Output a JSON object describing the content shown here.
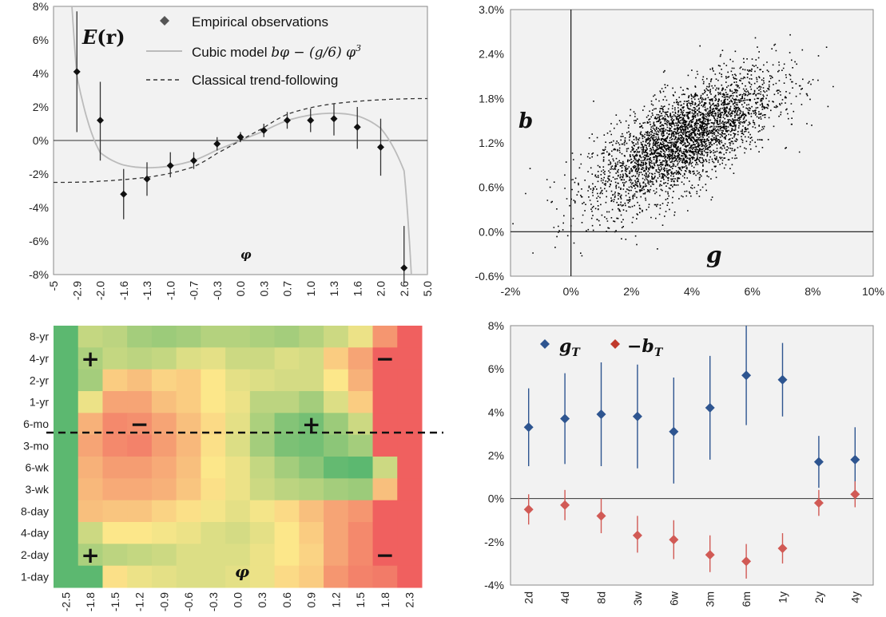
{
  "chart_data": [
    {
      "type": "scatter",
      "panel": "top-left",
      "annotation": "E(r)",
      "xlabel": "φ",
      "ylim": [
        -0.08,
        0.08
      ],
      "xlim": [
        -5,
        5
      ],
      "y_ticks": [
        "8%",
        "6%",
        "4%",
        "2%",
        "0%",
        "-2%",
        "-4%",
        "-6%",
        "-8%"
      ],
      "x_ticks": [
        "-5",
        "-2.9",
        "-2.0",
        "-1.6",
        "-1.3",
        "-1.0",
        "-0.7",
        "-0.3",
        "0.0",
        "0.3",
        "0.7",
        "1.0",
        "1.3",
        "1.6",
        "2.0",
        "2.6",
        "5.0"
      ],
      "legend": [
        {
          "label": "Empirical observations",
          "marker": "diamond",
          "color": "#555555"
        },
        {
          "label": "Cubic model bφ − (g/6) φ³",
          "style": "solid",
          "color": "#bbbbbb"
        },
        {
          "label": "Classical trend-following",
          "style": "dashed",
          "color": "#333333"
        }
      ],
      "series": [
        {
          "name": "Empirical observations",
          "points": [
            {
              "x": "-2.9",
              "y": 0.041,
              "lo": 0.005,
              "hi": 0.077
            },
            {
              "x": "-2.0",
              "y": 0.012,
              "lo": -0.012,
              "hi": 0.035
            },
            {
              "x": "-1.6",
              "y": -0.032,
              "lo": -0.047,
              "hi": -0.017
            },
            {
              "x": "-1.3",
              "y": -0.023,
              "lo": -0.033,
              "hi": -0.013
            },
            {
              "x": "-1.0",
              "y": -0.015,
              "lo": -0.022,
              "hi": -0.007
            },
            {
              "x": "-0.7",
              "y": -0.012,
              "lo": -0.017,
              "hi": -0.007
            },
            {
              "x": "-0.3",
              "y": -0.002,
              "lo": -0.006,
              "hi": 0.002
            },
            {
              "x": "0.0",
              "y": 0.002,
              "lo": -0.001,
              "hi": 0.005
            },
            {
              "x": "0.3",
              "y": 0.006,
              "lo": 0.002,
              "hi": 0.01
            },
            {
              "x": "0.7",
              "y": 0.012,
              "lo": 0.007,
              "hi": 0.017
            },
            {
              "x": "1.0",
              "y": 0.012,
              "lo": 0.005,
              "hi": 0.019
            },
            {
              "x": "1.3",
              "y": 0.013,
              "lo": 0.003,
              "hi": 0.022
            },
            {
              "x": "1.6",
              "y": 0.008,
              "lo": -0.005,
              "hi": 0.02
            },
            {
              "x": "2.0",
              "y": -0.004,
              "lo": -0.021,
              "hi": 0.013
            },
            {
              "x": "2.6",
              "y": -0.076,
              "lo": -0.085,
              "hi": -0.051
            }
          ]
        }
      ]
    },
    {
      "type": "scatter",
      "panel": "top-right",
      "xlabel": "g",
      "ylabel": "b",
      "xlim": [
        -0.02,
        0.1
      ],
      "ylim": [
        -0.006,
        0.03
      ],
      "x_ticks": [
        "-2%",
        "0%",
        "2%",
        "4%",
        "6%",
        "8%",
        "10%"
      ],
      "y_ticks": [
        "3.0%",
        "2.4%",
        "1.8%",
        "1.2%",
        "0.6%",
        "0.0%",
        "-0.6%"
      ],
      "cloud": {
        "n": 3500,
        "mean_g": 0.037,
        "mean_b": 0.0125,
        "sd_g": 0.015,
        "sd_b": 0.0045,
        "corr": 0.7
      }
    },
    {
      "type": "heatmap",
      "panel": "bottom-left",
      "xlabel": "φ",
      "x_ticks": [
        "-2.5",
        "-1.8",
        "-1.5",
        "-1.2",
        "-0.9",
        "-0.6",
        "-0.3",
        "0.0",
        "0.3",
        "0.6",
        "0.9",
        "1.2",
        "1.5",
        "1.8",
        "2.3"
      ],
      "y_ticks": [
        "8-yr",
        "4-yr",
        "2-yr",
        "1-yr",
        "6-mo",
        "3-mo",
        "6-wk",
        "3-wk",
        "8-day",
        "4-day",
        "2-day",
        "1-day"
      ],
      "signs": [
        {
          "text": "+",
          "row": "4-yr",
          "col": "-1.8"
        },
        {
          "text": "−",
          "row": "4-yr",
          "col": "1.8"
        },
        {
          "text": "−",
          "row": "6-mo",
          "col": "-1.2"
        },
        {
          "text": "+",
          "row": "6-mo",
          "col": "0.9"
        },
        {
          "text": "+",
          "row": "2-day",
          "col": "-1.8"
        },
        {
          "text": "−",
          "row": "2-day",
          "col": "1.8"
        }
      ],
      "colors": [
        "#5cb870",
        "#fce78a",
        "#f0605f"
      ],
      "values": [
        [
          1.0,
          0.35,
          0.4,
          0.55,
          0.6,
          0.55,
          0.45,
          0.45,
          0.5,
          0.55,
          0.45,
          0.3,
          0.1,
          -0.6,
          -1.0
        ],
        [
          1.0,
          0.5,
          0.35,
          0.4,
          0.35,
          0.2,
          0.15,
          0.3,
          0.3,
          0.2,
          0.25,
          -0.2,
          -0.5,
          -1.0,
          -1.0
        ],
        [
          1.0,
          0.55,
          -0.2,
          -0.3,
          -0.15,
          -0.2,
          0.0,
          0.15,
          0.2,
          0.25,
          0.25,
          0.0,
          -0.4,
          -1.0,
          -1.0
        ],
        [
          1.0,
          0.1,
          -0.5,
          -0.5,
          -0.3,
          -0.2,
          0.0,
          0.1,
          0.4,
          0.4,
          0.55,
          0.2,
          -0.2,
          -1.0,
          -1.0
        ],
        [
          1.0,
          -0.4,
          -0.7,
          -0.65,
          -0.5,
          -0.3,
          -0.1,
          0.15,
          0.5,
          0.75,
          0.85,
          0.6,
          0.3,
          -1.0,
          -1.0
        ],
        [
          1.0,
          -0.5,
          -0.7,
          -0.75,
          -0.55,
          -0.35,
          -0.05,
          0.2,
          0.55,
          0.8,
          0.85,
          0.7,
          0.55,
          -1.0,
          -1.0
        ],
        [
          1.0,
          -0.4,
          -0.55,
          -0.55,
          -0.45,
          -0.3,
          0.0,
          0.1,
          0.35,
          0.55,
          0.7,
          0.95,
          1.0,
          0.3,
          -1.0
        ],
        [
          1.0,
          -0.35,
          -0.45,
          -0.45,
          -0.4,
          -0.25,
          -0.05,
          0.1,
          0.3,
          0.4,
          0.45,
          0.55,
          0.6,
          -0.3,
          -1.0
        ],
        [
          1.0,
          -0.3,
          -0.25,
          -0.25,
          -0.15,
          -0.05,
          0.05,
          0.15,
          0.05,
          -0.1,
          -0.3,
          -0.5,
          -0.6,
          -1.0,
          -1.0
        ],
        [
          1.0,
          0.3,
          0.0,
          0.0,
          0.05,
          0.1,
          0.2,
          0.25,
          0.15,
          0.0,
          -0.2,
          -0.5,
          -0.7,
          -1.0,
          -1.0
        ],
        [
          1.0,
          0.5,
          0.4,
          0.35,
          0.3,
          0.2,
          0.2,
          0.2,
          0.1,
          0.0,
          -0.15,
          -0.5,
          -0.7,
          -1.0,
          -1.0
        ],
        [
          1.0,
          1.0,
          -0.05,
          0.1,
          0.15,
          0.2,
          0.2,
          0.15,
          0.1,
          -0.1,
          -0.2,
          -0.6,
          -0.75,
          -0.8,
          -1.0
        ]
      ],
      "divider_between": [
        "6-mo",
        "3-mo"
      ]
    },
    {
      "type": "scatter",
      "panel": "bottom-right",
      "categories": [
        "2d",
        "4d",
        "8d",
        "3w",
        "6w",
        "3m",
        "6m",
        "1y",
        "2y",
        "4y"
      ],
      "ylim": [
        -0.04,
        0.08
      ],
      "y_ticks": [
        "8%",
        "6%",
        "4%",
        "2%",
        "0%",
        "-2%",
        "-4%"
      ],
      "legend": [
        {
          "label": "g_T",
          "marker": "diamond",
          "color": "#2e5590"
        },
        {
          "label": "−b_T",
          "marker": "diamond",
          "color": "#d15a55"
        }
      ],
      "series": [
        {
          "name": "g_T",
          "color": "#2e5590",
          "values": [
            0.033,
            0.037,
            0.039,
            0.038,
            0.031,
            0.042,
            0.057,
            0.055,
            0.017,
            0.018
          ],
          "lo": [
            0.015,
            0.016,
            0.015,
            0.014,
            0.007,
            0.018,
            0.034,
            0.038,
            0.005,
            0.004
          ],
          "hi": [
            0.051,
            0.058,
            0.063,
            0.062,
            0.056,
            0.066,
            0.08,
            0.072,
            0.029,
            0.033
          ]
        },
        {
          "name": "−b_T",
          "color": "#d15a55",
          "values": [
            -0.005,
            -0.003,
            -0.008,
            -0.017,
            -0.019,
            -0.026,
            -0.029,
            -0.023,
            -0.002,
            0.002
          ],
          "lo": [
            -0.012,
            -0.01,
            -0.016,
            -0.025,
            -0.028,
            -0.034,
            -0.037,
            -0.03,
            -0.008,
            -0.004
          ],
          "hi": [
            0.002,
            0.004,
            0.0,
            -0.008,
            -0.01,
            -0.017,
            -0.021,
            -0.016,
            0.004,
            0.008
          ]
        }
      ]
    }
  ],
  "labels": {
    "er_part1": "E",
    "er_part2": "(r)",
    "phi": "φ",
    "b": "b",
    "g": "g",
    "legend_obs": "Empirical observations",
    "legend_cubic_a": "Cubic model ",
    "legend_cubic_b": "bφ − (g/6) φ",
    "legend_cubic_sup": "3",
    "legend_trend": "Classical trend-following",
    "gT": "g",
    "gT_sub": "T",
    "bT": "−b",
    "bT_sub": "T"
  }
}
